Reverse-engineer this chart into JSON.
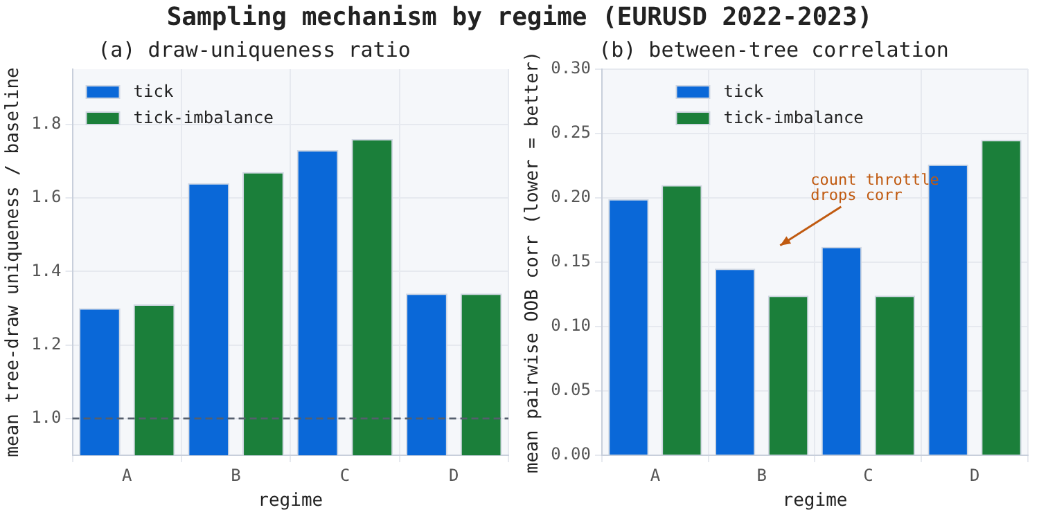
{
  "chart_data": [
    {
      "type": "bar",
      "title": "Sampling mechanism by regime (EURUSD 2022-2023)",
      "subtitle": "(a) draw-uniqueness ratio",
      "xlabel": "regime",
      "ylabel": "mean tree-draw uniqueness / baseline",
      "categories": [
        "A",
        "B",
        "C",
        "D"
      ],
      "series": [
        {
          "name": "tick",
          "color": "#0a68d8",
          "values": [
            1.3,
            1.64,
            1.73,
            1.34
          ]
        },
        {
          "name": "tick-imbalance",
          "color": "#1b7f3a",
          "values": [
            1.31,
            1.67,
            1.76,
            1.34
          ]
        }
      ],
      "ylim": [
        0.9,
        1.95
      ],
      "yticks": [
        {
          "value": 1.0,
          "label": "1.0"
        },
        {
          "value": 1.2,
          "label": "1.2"
        },
        {
          "value": 1.4,
          "label": "1.4"
        },
        {
          "value": 1.6,
          "label": "1.6"
        },
        {
          "value": 1.8,
          "label": "1.8"
        }
      ],
      "ref_lines": [
        {
          "axis": "y",
          "value": 1.0,
          "color": "#555f6d",
          "line_style": "dashed"
        }
      ],
      "grid": true,
      "legend": "top left"
    },
    {
      "type": "bar",
      "title": "(b) between-tree correlation",
      "xlabel": "regime",
      "ylabel": "mean pairwise OOB corr (lower = better)",
      "categories": [
        "A",
        "B",
        "C",
        "D"
      ],
      "series": [
        {
          "name": "tick",
          "color": "#0a68d8",
          "values": [
            0.199,
            0.145,
            0.162,
            0.226
          ]
        },
        {
          "name": "tick-imbalance",
          "color": "#1b7f3a",
          "values": [
            0.21,
            0.124,
            0.124,
            0.245
          ]
        }
      ],
      "ylim": [
        0,
        0.3
      ],
      "yticks": [
        {
          "value": 0,
          "label": "0.00"
        },
        {
          "value": 0.05,
          "label": "0.05"
        },
        {
          "value": 0.1,
          "label": "0.10"
        },
        {
          "value": 0.15,
          "label": "0.15"
        },
        {
          "value": 0.2,
          "label": "0.20"
        },
        {
          "value": 0.25,
          "label": "0.25"
        },
        {
          "value": 0.3,
          "label": "0.30"
        }
      ],
      "annotations": [
        "count throttle\ndrops corr"
      ],
      "grid": true,
      "legend": "top"
    }
  ]
}
